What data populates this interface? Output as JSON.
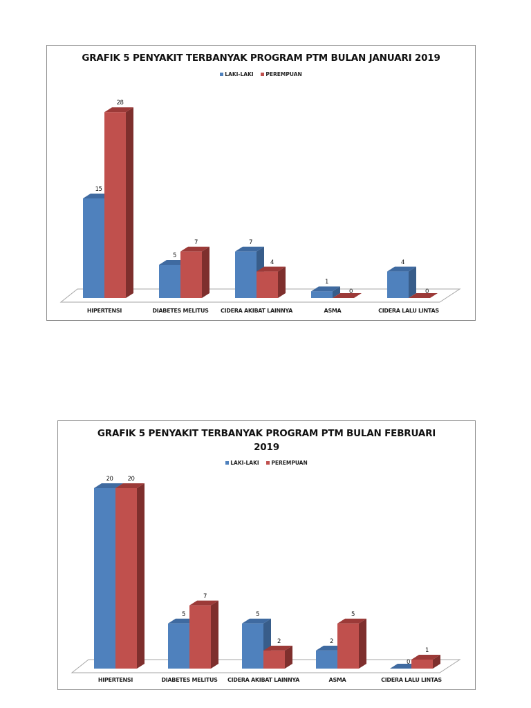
{
  "chart_data": [
    {
      "type": "bar",
      "title": "GRAFIK 5 PENYAKIT TERBANYAK PROGRAM PTM BULAN JANUARI 2019",
      "categories": [
        "HIPERTENSI",
        "DIABETES MELITUS",
        "CIDERA AKIBAT LAINNYA",
        "ASMA",
        "CIDERA LALU LINTAS"
      ],
      "series": [
        {
          "name": "LAKI-LAKI",
          "color": "#4f81bd",
          "values": [
            15,
            5,
            7,
            1,
            4
          ]
        },
        {
          "name": "PEREMPUAN",
          "color": "#c0504d",
          "values": [
            28,
            7,
            4,
            0,
            0
          ]
        }
      ],
      "xlabel": "",
      "ylabel": "",
      "legend_position": "top",
      "grid": false,
      "style": "3d-clustered-column",
      "data_labels": true
    },
    {
      "type": "bar",
      "title": "GRAFIK 5 PENYAKIT TERBANYAK PROGRAM PTM BULAN FEBRUARI 2019",
      "categories": [
        "HIPERTENSI",
        "DIABETES MELITUS",
        "CIDERA AKIBAT LAINNYA",
        "ASMA",
        "CIDERA LALU LINTAS"
      ],
      "series": [
        {
          "name": "LAKI-LAKI",
          "color": "#4f81bd",
          "values": [
            20,
            5,
            5,
            2,
            0
          ]
        },
        {
          "name": "PEREMPUAN",
          "color": "#c0504d",
          "values": [
            20,
            7,
            2,
            5,
            1
          ]
        }
      ],
      "xlabel": "",
      "ylabel": "",
      "legend_position": "top",
      "grid": false,
      "style": "3d-clustered-column",
      "data_labels": true
    }
  ],
  "charts": [
    {
      "title_line1": "GRAFIK 5 PENYAKIT TERBANYAK PROGRAM PTM BULAN JANUARI 2019",
      "title_line2": "",
      "legend": [
        "LAKI-LAKI",
        "PEREMPUAN"
      ]
    },
    {
      "title_line1": "GRAFIK 5 PENYAKIT TERBANYAK PROGRAM PTM BULAN FEBRUARI",
      "title_line2": "2019",
      "legend": [
        "LAKI-LAKI",
        "PEREMPUAN"
      ]
    }
  ],
  "colors": {
    "blue_front": "#4f81bd",
    "blue_side": "#385d8a",
    "blue_top": "#3f6aa0",
    "red_front": "#c0504d",
    "red_side": "#7e2f2d",
    "red_top": "#9c3a38",
    "floor_line": "#a6a6a6"
  }
}
